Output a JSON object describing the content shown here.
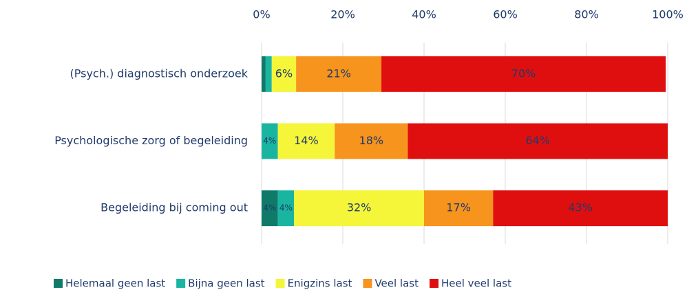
{
  "chart_data": {
    "type": "stacked_bar_horizontal",
    "categories": [
      "(Psych.) diagnostisch onderzoek",
      "Psychologische zorg of begeleiding",
      "Begeleiding bij coming out"
    ],
    "series": [
      {
        "name": "Helemaal geen last",
        "color": "#0f7a6a",
        "values": [
          1,
          0,
          4
        ],
        "value_labels": [
          null,
          null,
          "4%"
        ]
      },
      {
        "name": "Bijna geen last",
        "color": "#19b5a0",
        "values": [
          1.5,
          4,
          4
        ],
        "value_labels": [
          null,
          "4%",
          "4%"
        ]
      },
      {
        "name": "Enigzins last",
        "color": "#f5f53a",
        "values": [
          6,
          14,
          32
        ],
        "value_labels": [
          "6%",
          "14%",
          "32%"
        ]
      },
      {
        "name": "Veel last",
        "color": "#f7941d",
        "values": [
          21,
          18,
          17
        ],
        "value_labels": [
          "21%",
          "18%",
          "17%"
        ]
      },
      {
        "name": "Heel veel last",
        "color": "#e00f0f",
        "values": [
          70,
          64,
          43
        ],
        "value_labels": [
          "70%",
          "64%",
          "43%"
        ]
      }
    ],
    "xlim": [
      0,
      100
    ],
    "xticks": [
      {
        "value": 0,
        "label": "0%"
      },
      {
        "value": 20,
        "label": "20%"
      },
      {
        "value": 40,
        "label": "40%"
      },
      {
        "value": 60,
        "label": "60%"
      },
      {
        "value": 80,
        "label": "80%"
      },
      {
        "value": 100,
        "label": "100%"
      }
    ],
    "grid": true,
    "legend": "bottom"
  }
}
